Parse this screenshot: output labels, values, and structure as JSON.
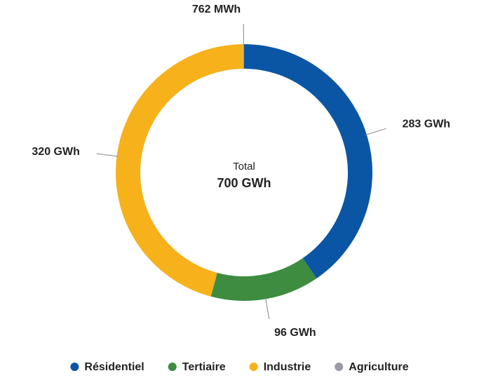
{
  "chart_data": {
    "type": "donut",
    "categories": [
      "Résidentiel",
      "Tertiaire",
      "Industrie",
      "Agriculture"
    ],
    "values": [
      283,
      96,
      320,
      0.762
    ],
    "value_labels": [
      "283 GWh",
      "96 GWh",
      "320 GWh",
      "762 MWh"
    ],
    "colors": [
      "#0b56a4",
      "#3d8c40",
      "#f6b11b",
      "#9a9aa8"
    ],
    "center_title": "Total",
    "center_label": "700 GWh",
    "legend": "bottom"
  }
}
